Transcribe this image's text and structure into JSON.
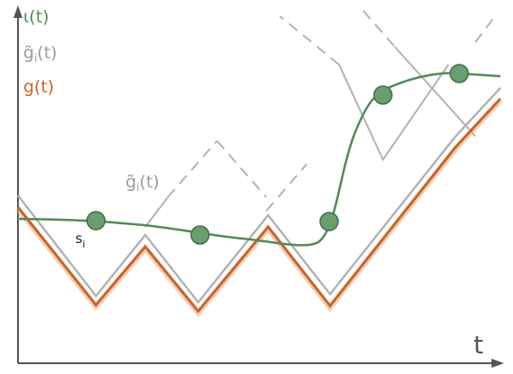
{
  "legend": {
    "iota": {
      "label": "ι(t)",
      "color": "#4f8a5b"
    },
    "g_tilde": {
      "label": "g̃",
      "subscript": "i",
      "arg": "(t)",
      "color": "#9a9a9a"
    },
    "g": {
      "label": "g(t)",
      "color": "#c8652a"
    }
  },
  "annotations": {
    "g_tilde_curve": {
      "label": "g̃",
      "subscript": "i",
      "arg": "(t)"
    },
    "sample": {
      "label": "s",
      "subscript": "i"
    }
  },
  "axes": {
    "x_label": "t"
  },
  "colors": {
    "axis": "#555555",
    "g": "#c8652a",
    "g_shadow": "#e6a77c",
    "g_tilde": "#b3b3b3",
    "iota": "#4f8a5b",
    "dot_fill": "#6a9e6f",
    "dot_stroke": "#3f7048"
  }
}
